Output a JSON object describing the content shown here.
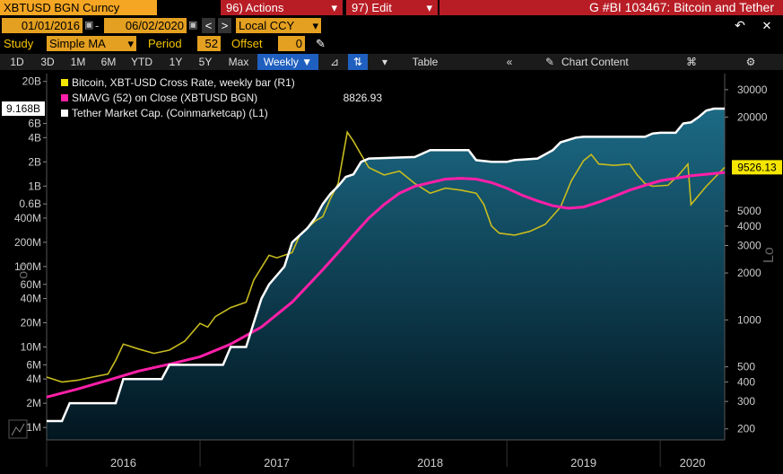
{
  "header": {
    "ticker": "XBTUSD BGN Curncy",
    "actions_label": "96) Actions",
    "actions_arrow": "▾",
    "edit_label": "97) Edit",
    "edit_arrow": "▾",
    "title": "G #BI 103467: Bitcoin and Tether"
  },
  "range": {
    "start": "01/01/2016",
    "end": "06/02/2020",
    "currency": "Local CCY"
  },
  "study": {
    "label": "Study",
    "value": "Simple MA",
    "period_label": "Period",
    "period": "52",
    "offset_label": "Offset",
    "offset": "0"
  },
  "toolbar": {
    "periods": [
      "1D",
      "3D",
      "1M",
      "6M",
      "YTD",
      "1Y",
      "5Y",
      "Max"
    ],
    "frequency": "Weekly",
    "table_label": "Table",
    "chart_content_label": "Chart Content"
  },
  "colors": {
    "bitcoin": "#c8bc1e",
    "sma": "#ff1fa8",
    "tether": "#ffffff",
    "fill_top": "#1c6a86",
    "fill_bottom": "#021620",
    "accent_orange": "#f5a623",
    "accent_red": "#b81d25"
  },
  "chart_data": {
    "type": "line",
    "x_labels": [
      "2016",
      "2017",
      "2018",
      "2019",
      "2020"
    ],
    "left_axis": {
      "label": "Lo",
      "scale": "log",
      "range": [
        700000,
        25000000000
      ],
      "ticks": [
        "1M",
        "2M",
        "4M",
        "6M",
        "10M",
        "20M",
        "40M",
        "60M",
        "100M",
        "200M",
        "400M",
        "0.6B",
        "1B",
        "2B",
        "4B",
        "6B",
        "20B"
      ],
      "tick_values": [
        1000000,
        2000000,
        4000000,
        6000000,
        10000000,
        20000000,
        40000000,
        60000000,
        100000000,
        200000000,
        400000000,
        600000000,
        1000000000,
        2000000000,
        4000000000,
        6000000000,
        20000000000
      ],
      "last_value_label": "9.168B"
    },
    "right_axis": {
      "label": "Lo",
      "scale": "log",
      "range": [
        170,
        38000
      ],
      "ticks": [
        "200",
        "300",
        "400",
        "500",
        "1000",
        "2000",
        "3000",
        "4000",
        "5000",
        "20000",
        "30000"
      ],
      "tick_values": [
        200,
        300,
        400,
        500,
        1000,
        2000,
        3000,
        4000,
        5000,
        20000,
        30000
      ],
      "last_value_label": "9526.13"
    },
    "legend": [
      {
        "name": "Bitcoin, XBT-USD Cross Rate, weekly bar (R1)",
        "value": "",
        "color": "#f5e600"
      },
      {
        "name": "SMAVG (52)  on Close (XBTUSD BGN)",
        "value": "8826.93",
        "color": "#ff1fa8"
      },
      {
        "name": "Tether Market Cap. (Coinmarketcap) (L1)",
        "value": "",
        "color": "#ffffff"
      }
    ],
    "series": [
      {
        "name": "Bitcoin",
        "axis": "right",
        "x": [
          2016.0,
          2016.1,
          2016.2,
          2016.3,
          2016.4,
          2016.45,
          2016.5,
          2016.6,
          2016.7,
          2016.8,
          2016.9,
          2017.0,
          2017.05,
          2017.1,
          2017.2,
          2017.3,
          2017.35,
          2017.45,
          2017.5,
          2017.6,
          2017.65,
          2017.75,
          2017.8,
          2017.85,
          2017.9,
          2017.96,
          2018.0,
          2018.05,
          2018.1,
          2018.2,
          2018.3,
          2018.4,
          2018.5,
          2018.6,
          2018.7,
          2018.8,
          2018.85,
          2018.9,
          2018.95,
          2019.05,
          2019.15,
          2019.25,
          2019.35,
          2019.42,
          2019.5,
          2019.55,
          2019.6,
          2019.7,
          2019.8,
          2019.85,
          2019.9,
          2019.95,
          2020.05,
          2020.12,
          2020.18,
          2020.2,
          2020.3,
          2020.42
        ],
        "values": [
          430,
          400,
          410,
          430,
          450,
          550,
          700,
          650,
          610,
          640,
          730,
          950,
          900,
          1050,
          1200,
          1300,
          1800,
          2600,
          2500,
          2700,
          3500,
          4300,
          4600,
          6000,
          7500,
          16000,
          14000,
          11500,
          9500,
          8500,
          9000,
          7500,
          6500,
          7000,
          6800,
          6500,
          5500,
          4000,
          3600,
          3500,
          3700,
          4100,
          5300,
          7800,
          10500,
          11500,
          10000,
          9800,
          10000,
          8500,
          7500,
          7200,
          7300,
          8500,
          10000,
          5500,
          7200,
          9526.13
        ]
      },
      {
        "name": "SMAVG (52)",
        "axis": "right",
        "x": [
          2016.0,
          2016.2,
          2016.4,
          2016.6,
          2016.8,
          2017.0,
          2017.2,
          2017.4,
          2017.6,
          2017.8,
          2017.9,
          2018.0,
          2018.1,
          2018.2,
          2018.3,
          2018.4,
          2018.5,
          2018.6,
          2018.7,
          2018.8,
          2018.9,
          2019.0,
          2019.1,
          2019.2,
          2019.3,
          2019.4,
          2019.5,
          2019.6,
          2019.7,
          2019.8,
          2019.9,
          2020.0,
          2020.1,
          2020.2,
          2020.3,
          2020.42
        ],
        "values": [
          320,
          360,
          410,
          470,
          520,
          580,
          700,
          900,
          1300,
          2100,
          2700,
          3500,
          4500,
          5500,
          6500,
          7200,
          7600,
          8000,
          8100,
          8000,
          7600,
          7000,
          6300,
          5800,
          5400,
          5200,
          5300,
          5700,
          6200,
          6800,
          7300,
          7800,
          8100,
          8400,
          8600,
          8826.93
        ]
      },
      {
        "name": "Tether Market Cap.",
        "axis": "left",
        "x": [
          2016.0,
          2016.1,
          2016.15,
          2016.45,
          2016.5,
          2016.75,
          2016.8,
          2017.15,
          2017.2,
          2017.3,
          2017.35,
          2017.4,
          2017.45,
          2017.55,
          2017.6,
          2017.7,
          2017.75,
          2017.8,
          2017.85,
          2017.9,
          2017.95,
          2018.0,
          2018.05,
          2018.1,
          2018.4,
          2018.5,
          2018.75,
          2018.8,
          2018.9,
          2019.0,
          2019.05,
          2019.2,
          2019.3,
          2019.35,
          2019.45,
          2019.5,
          2019.9,
          2019.95,
          2020.0,
          2020.1,
          2020.15,
          2020.2,
          2020.25,
          2020.3,
          2020.35,
          2020.42
        ],
        "values": [
          1200000,
          1200000,
          2000000,
          2000000,
          4000000,
          4000000,
          6000000,
          6000000,
          10000000,
          10000000,
          20000000,
          40000000,
          60000000,
          100000000,
          200000000,
          300000000,
          400000000,
          600000000,
          800000000,
          1000000000,
          1300000000,
          1400000000,
          2000000000,
          2200000000,
          2300000000,
          2800000000,
          2800000000,
          2100000000,
          2000000000,
          2000000000,
          2100000000,
          2200000000,
          2800000000,
          3500000000,
          4000000000,
          4100000000,
          4100000000,
          4500000000,
          4600000000,
          4600000000,
          6000000000,
          6200000000,
          7200000000,
          8700000000,
          9168000000,
          9168000000
        ]
      }
    ]
  }
}
